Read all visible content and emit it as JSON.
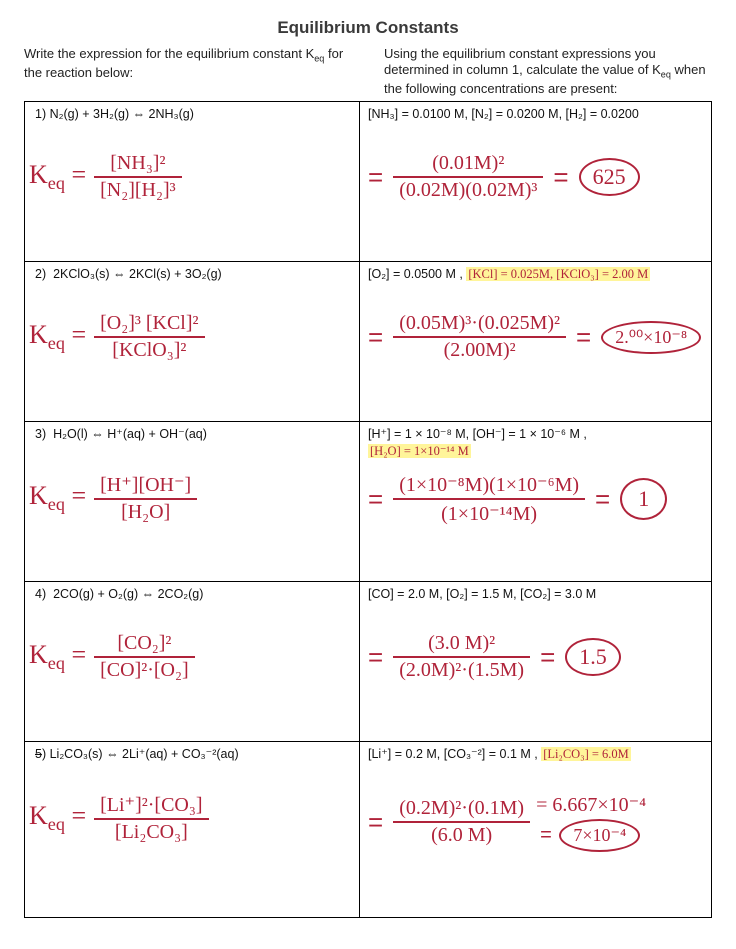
{
  "title": "Equilibrium Constants",
  "header_left": "Write the expression for the equilibrium constant K_eq for the reaction below:",
  "header_right": "Using the equilibrium constant expressions you determined in column 1, calculate the value of K_eq when the following concentrations are present:",
  "colors": {
    "ink": "#b0233a",
    "highlight": "#fff59a",
    "text": "#111111",
    "border": "#000000",
    "bg": "#ffffff"
  },
  "rows": [
    {
      "n": "1",
      "reaction": "N₂(g) + 3H₂(g) ⇔ 2NH₃(g)",
      "given": "[NH₃] = 0.0100 M, [N₂] = 0.0200 M, [H₂] = 0.0200",
      "given_extra": "",
      "expr_num": "[NH₃]²",
      "expr_den": "[N₂][H₂]³",
      "calc_num": "(0.01M)²",
      "calc_den": "(0.02M)(0.02M)³",
      "answer": "625",
      "answer2": ""
    },
    {
      "n": "2",
      "reaction": "2KClO₃(s) ⇔ 2KCl(s) + 3O₂(g)",
      "given": "[O₂] = 0.0500 M ,",
      "given_extra": "[KCl] = 0.025M, [KClO₃] = 2.00 M",
      "expr_num": "[O₂]³ [KCl]²",
      "expr_den": "[KClO₃]²",
      "calc_num": "(0.05M)³·(0.025M)²",
      "calc_den": "(2.00M)²",
      "answer": "2.⁰⁰×10⁻⁸",
      "answer2": ""
    },
    {
      "n": "3",
      "reaction": "H₂O(l) ⇔ H⁺(aq) + OH⁻(aq)",
      "given": "[H⁺] = 1 × 10⁻⁸ M, [OH⁻] = 1 × 10⁻⁶ M ,",
      "given_extra": "[H₂O] = 1×10⁻¹⁴ M",
      "expr_num": "[H⁺][OH⁻]",
      "expr_den": "[H₂O]",
      "calc_num": "(1×10⁻⁸M)(1×10⁻⁶M)",
      "calc_den": "(1×10⁻¹⁴M)",
      "answer": "1",
      "answer2": ""
    },
    {
      "n": "4",
      "reaction": "2CO(g) + O₂(g) ⇔ 2CO₂(g)",
      "given": "[CO] = 2.0 M, [O₂] = 1.5 M, [CO₂] = 3.0 M",
      "given_extra": "",
      "expr_num": "[CO₂]²",
      "expr_den": "[CO]²·[O₂]",
      "calc_num": "(3.0 M)²",
      "calc_den": "(2.0M)²·(1.5M)",
      "answer": "1.5",
      "answer2": ""
    },
    {
      "n": "5",
      "reaction": "Li₂CO₃(s) ⇔ 2Li⁺(aq) + CO₃⁻²(aq)",
      "given": "[Li⁺] = 0.2 M, [CO₃⁻²] = 0.1 M ,",
      "given_extra": "[Li₂CO₃] = 6.0M",
      "expr_num": "[Li⁺]²·[CO₃]",
      "expr_den": "[Li₂CO₃]",
      "calc_num": "(0.2M)²·(0.1M)",
      "calc_den": "(6.0 M)",
      "answer": "7×10⁻⁴",
      "answer2": "= 6.667×10⁻⁴"
    }
  ]
}
